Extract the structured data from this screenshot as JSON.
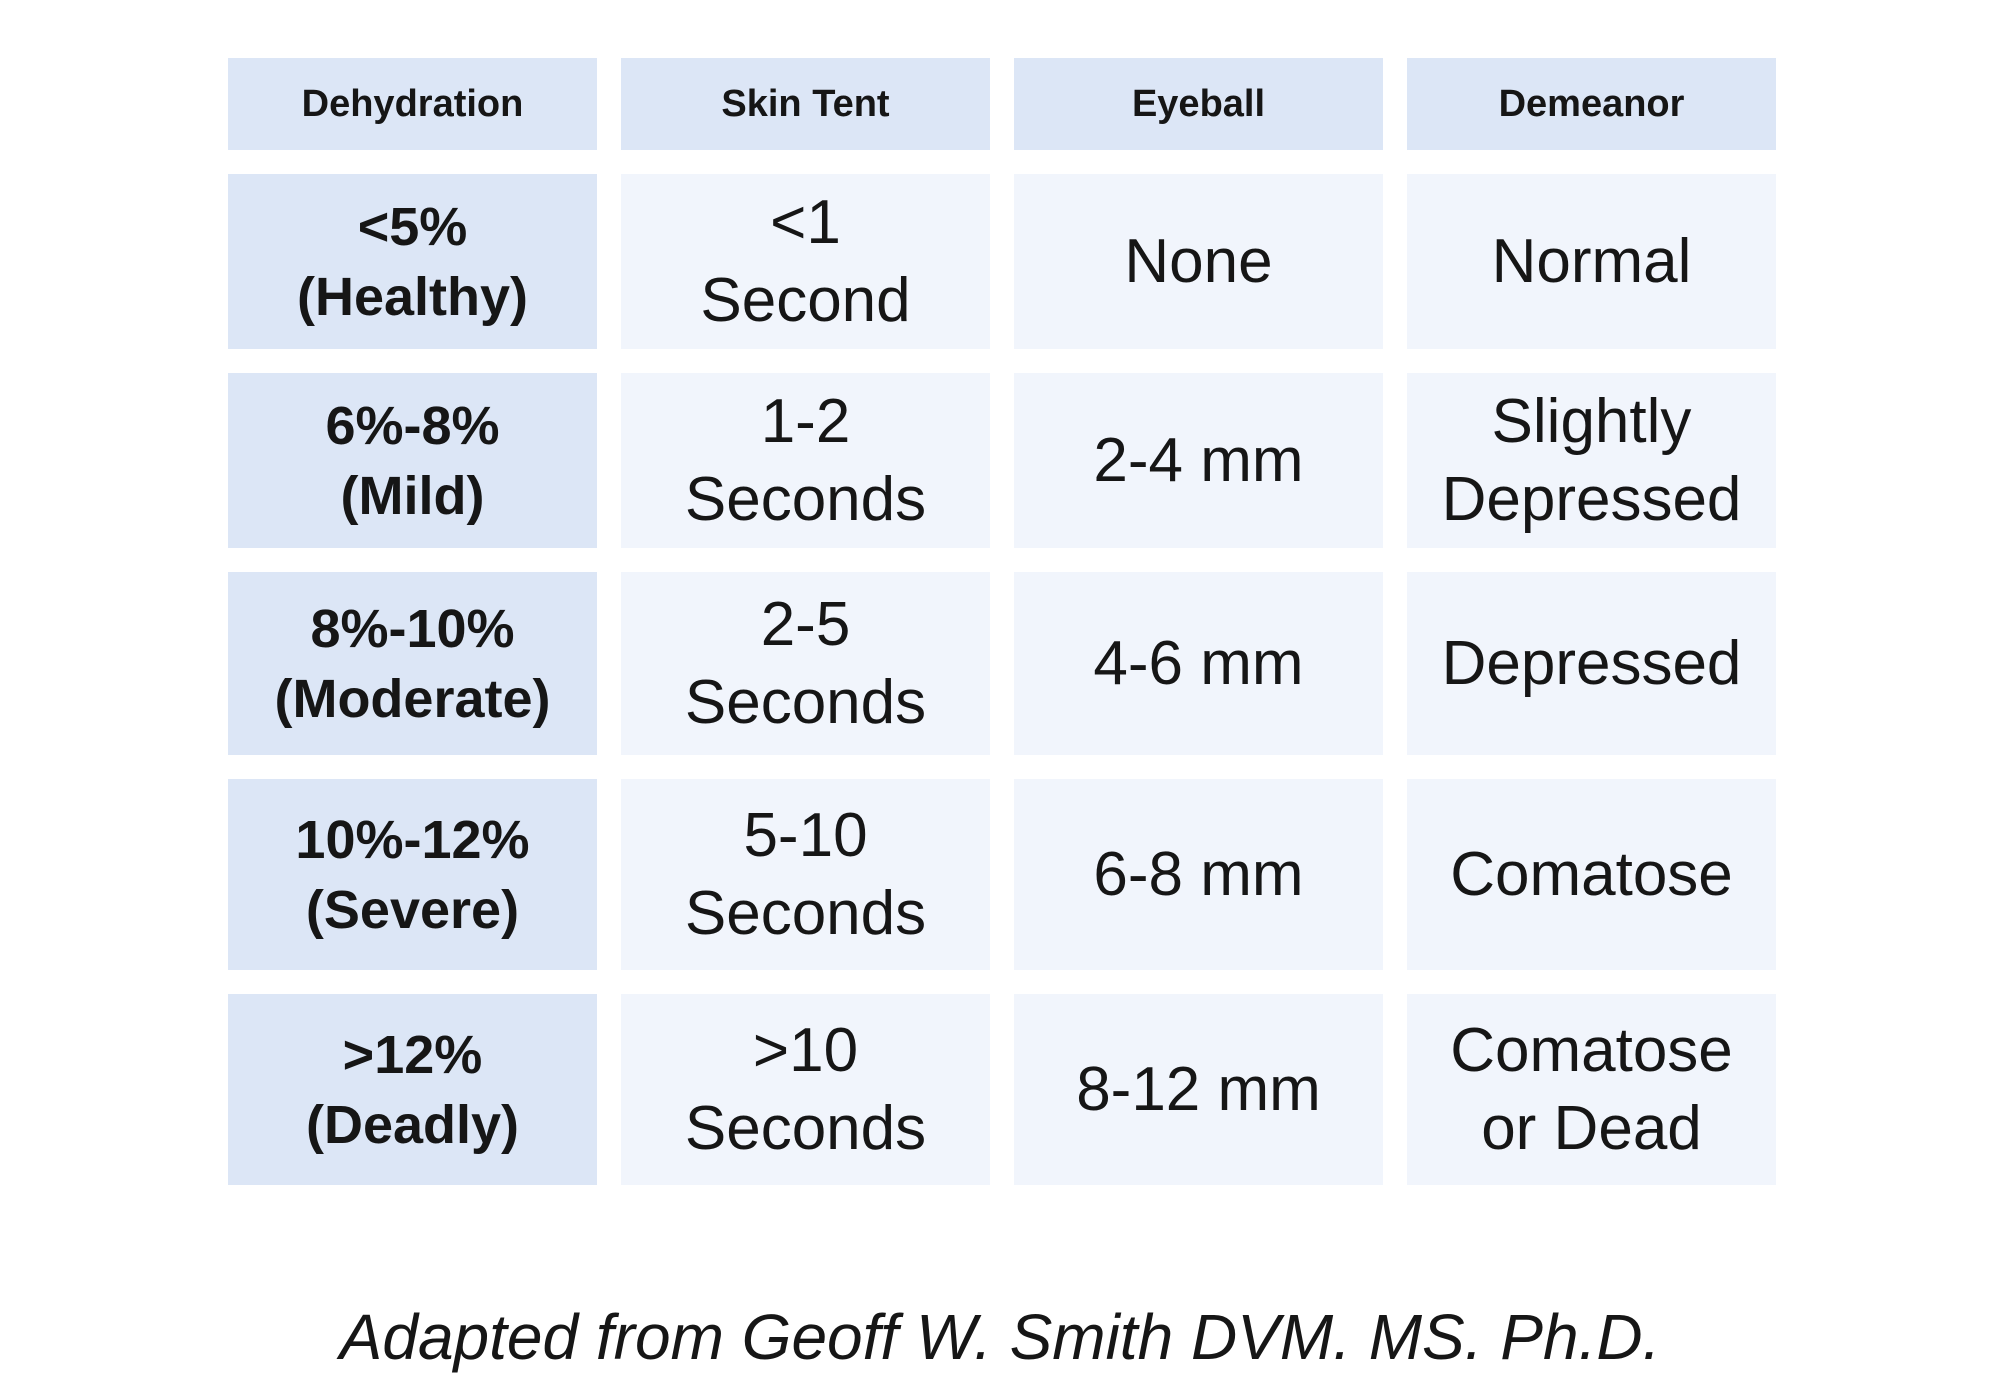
{
  "table": {
    "headers": [
      "Dehydration",
      "Skin Tent",
      "Eyeball",
      "Demeanor"
    ],
    "rows": [
      {
        "dehydration": "<5%\n(Healthy)",
        "skin_tent": "<1\nSecond",
        "eyeball": "None",
        "demeanor": "Normal"
      },
      {
        "dehydration": "6%-8%\n(Mild)",
        "skin_tent": "1-2\nSeconds",
        "eyeball": "2-4 mm",
        "demeanor": "Slightly\nDepressed"
      },
      {
        "dehydration": "8%-10%\n(Moderate)",
        "skin_tent": "2-5\nSeconds",
        "eyeball": "4-6 mm",
        "demeanor": "Depressed"
      },
      {
        "dehydration": "10%-12%\n(Severe)",
        "skin_tent": "5-10\nSeconds",
        "eyeball": "6-8 mm",
        "demeanor": "Comatose"
      },
      {
        "dehydration": ">12%\n(Deadly)",
        "skin_tent": ">10\nSeconds",
        "eyeball": "8-12 mm",
        "demeanor": "Comatose\nor Dead"
      }
    ]
  },
  "caption": "Adapted from Geoff W. Smith DVM. MS. Ph.D.",
  "colors": {
    "header_bg": "#dce6f6",
    "label_bg": "#dce6f6",
    "cell_bg": "#f1f5fc",
    "text": "#161616"
  }
}
